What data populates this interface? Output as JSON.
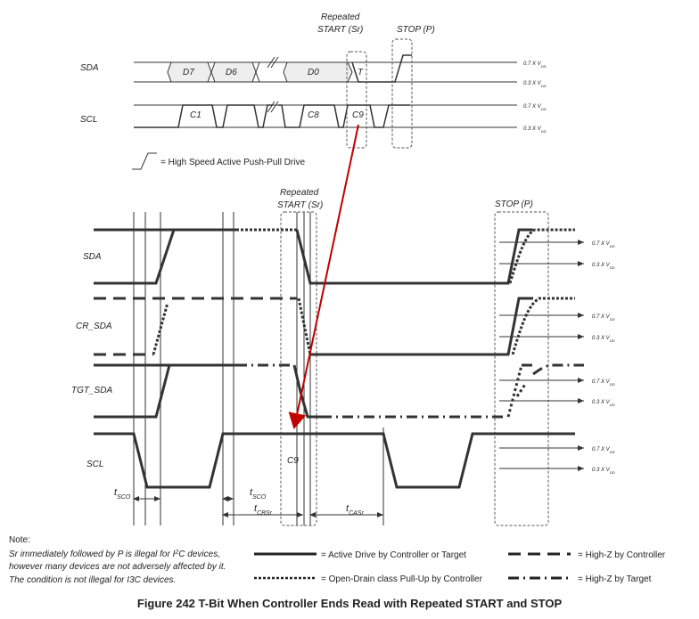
{
  "top_diagram": {
    "sr_label": [
      "Repeated",
      "START (Sr)"
    ],
    "stop_label": "STOP (P)",
    "signals": [
      "SDA",
      "SCL"
    ],
    "sda_bits": [
      "D7",
      "D6",
      "D0",
      "T"
    ],
    "scl_clocks": [
      "C1",
      "C8",
      "C9"
    ],
    "thresholds": [
      {
        "level": "0.7 X V",
        "sub": "DD"
      },
      {
        "level": "0.3 X V",
        "sub": "DD"
      }
    ],
    "legend": "= High Speed Active Push-Pull Drive"
  },
  "bottom_diagram": {
    "sr_label": [
      "Repeated",
      "START (Sr)"
    ],
    "stop_label": "STOP (P)",
    "signals": [
      "SDA",
      "CR_SDA",
      "TGT_SDA",
      "SCL"
    ],
    "clock_label": "C9",
    "thresholds": [
      {
        "level": "0.7 X V",
        "sub": "DD"
      },
      {
        "level": "0.3 X V",
        "sub": "DD"
      }
    ],
    "timings": [
      {
        "t": "t",
        "sub": "SCO"
      },
      {
        "t": "t",
        "sub": "SCO"
      },
      {
        "t": "t",
        "sub": "CBSr"
      },
      {
        "t": "t",
        "sub": "CASr"
      }
    ]
  },
  "note": {
    "title": "Note:",
    "line1": {
      "before": "Sr immediately followed by P is  illegal for I",
      "sup": "2",
      "after": "C devices,"
    },
    "line2": "however many devices are not adversely affected by it.",
    "line3": "The condition is not illegal for I3C devices."
  },
  "legend": [
    "= Active Drive by Controller or Target",
    "= High-Z by Controller",
    "= Open-Drain class Pull-Up by Controller",
    "= High-Z by Target"
  ],
  "caption": "Figure 242 T-Bit When Controller Ends Read with Repeated START and STOP"
}
